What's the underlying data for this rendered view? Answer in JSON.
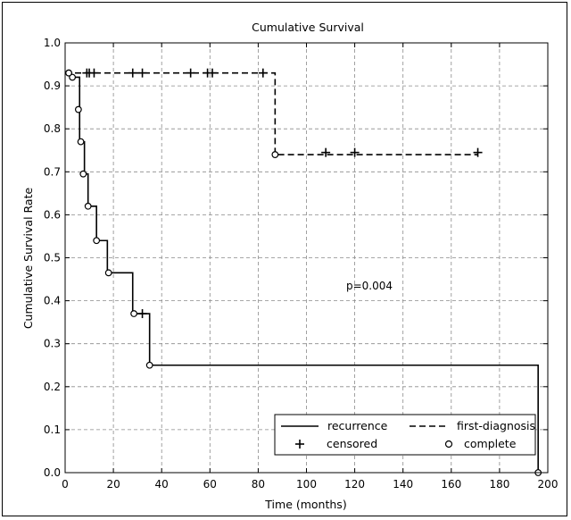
{
  "chart_data": {
    "type": "line",
    "title": "Cumulative Survival",
    "xlabel": "Time (months)",
    "ylabel": "Cumulative Survival Rate",
    "xlim": [
      0,
      200
    ],
    "ylim": [
      0.0,
      1.0
    ],
    "x_ticks": [
      "0",
      "20",
      "40",
      "60",
      "80",
      "100",
      "120",
      "140",
      "160",
      "180",
      "200"
    ],
    "y_ticks": [
      "0.0",
      "0.1",
      "0.2",
      "0.3",
      "0.4",
      "0.5",
      "0.6",
      "0.7",
      "0.8",
      "0.9",
      "1.0"
    ],
    "grid": true,
    "annotation": "p=0.004",
    "legend": {
      "placement": "bottom-right",
      "entries": [
        {
          "label": "recurrence",
          "style": "solid-line"
        },
        {
          "label": "first-diagnosis",
          "style": "dashed-line"
        },
        {
          "label": "censored",
          "style": "plus-marker"
        },
        {
          "label": "complete",
          "style": "circle-marker"
        }
      ]
    },
    "series": [
      {
        "name": "recurrence",
        "line_style": "solid",
        "steps": [
          [
            0,
            0.93
          ],
          [
            2,
            0.92
          ],
          [
            6,
            0.77
          ],
          [
            8,
            0.695
          ],
          [
            9.5,
            0.62
          ],
          [
            13,
            0.54
          ],
          [
            17.5,
            0.465
          ],
          [
            28,
            0.37
          ],
          [
            35,
            0.25
          ],
          [
            196,
            0.0
          ]
        ],
        "end_x": 196,
        "complete": [
          [
            1.5,
            0.93
          ],
          [
            3,
            0.92
          ],
          [
            5.5,
            0.845
          ],
          [
            6.5,
            0.77
          ],
          [
            7.5,
            0.695
          ],
          [
            9.5,
            0.62
          ],
          [
            13,
            0.54
          ],
          [
            18,
            0.465
          ],
          [
            28.5,
            0.37
          ],
          [
            35,
            0.25
          ],
          [
            196,
            0.0
          ]
        ],
        "censored": [
          [
            32,
            0.37
          ]
        ]
      },
      {
        "name": "first-diagnosis",
        "line_style": "dashed",
        "steps": [
          [
            0,
            0.93
          ],
          [
            87,
            0.74
          ]
        ],
        "end_x": 171,
        "complete": [
          [
            1.5,
            0.93
          ],
          [
            87,
            0.74
          ]
        ],
        "censored": [
          [
            9,
            0.93
          ],
          [
            10,
            0.93
          ],
          [
            12,
            0.93
          ],
          [
            28,
            0.93
          ],
          [
            32,
            0.93
          ],
          [
            52,
            0.93
          ],
          [
            59,
            0.93
          ],
          [
            61,
            0.93
          ],
          [
            82,
            0.93
          ],
          [
            108,
            0.745
          ],
          [
            120,
            0.745
          ],
          [
            171,
            0.745
          ]
        ]
      }
    ]
  }
}
